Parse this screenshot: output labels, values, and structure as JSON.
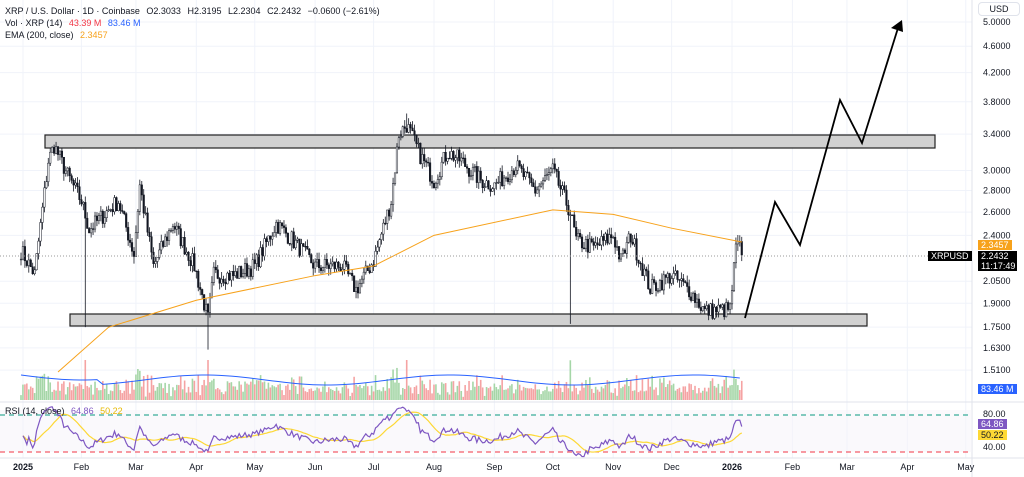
{
  "header": {
    "symbol_line": "XRP / U.S. Dollar · 1D · Coinbase",
    "open": "O2.3033",
    "high": "H2.3195",
    "low": "L2.2304",
    "close": "C2.2432",
    "change": "−0.0600 (−2.61%)",
    "vol_label": "Vol · XRP (14)",
    "vol_value": "43.39 M",
    "vol_ma": "83.46 M",
    "ema_label": "EMA (200, close)",
    "ema_value": "2.3457",
    "rsi_label": "RSI (14, close)",
    "rsi_value": "64.86",
    "rsi_ma": "50.22"
  },
  "price_axis": {
    "currency": "USD",
    "scale": "log",
    "ticks": [
      "5.0000",
      "4.6000",
      "4.2000",
      "3.8000",
      "3.4000",
      "3.0000",
      "2.8000",
      "2.6000",
      "2.4000",
      "2.0500",
      "1.9000",
      "1.7500",
      "1.6300",
      "1.5100"
    ],
    "tags": {
      "ema": "2.3457",
      "symbol": "XRPUSD",
      "last_price": "2.2432",
      "countdown": "11:17:49",
      "vol_ma": "83.46 M",
      "rsi": "64.86",
      "rsi_ma": "50.22"
    },
    "rsi_ticks": [
      "80.00",
      "40.00"
    ]
  },
  "time_axis": [
    "2025",
    "Feb",
    "Mar",
    "Apr",
    "May",
    "Jun",
    "Jul",
    "Aug",
    "Sep",
    "Oct",
    "Nov",
    "Dec",
    "2026",
    "Feb",
    "Mar",
    "Apr",
    "May"
  ],
  "colors": {
    "up": "#131722",
    "down": "#131722",
    "ema": "#f7a21b",
    "vol_ma": "#2962ff",
    "rsi": "#7e57c2",
    "rsi_ma": "#fdd835",
    "vol_up": "#a5d6a7",
    "vol_down": "#f5a3a3",
    "overbought": "#089981",
    "oversold": "#f23645"
  },
  "chart_data": {
    "type": "candlestick",
    "x_unit": "date",
    "closes_approx": [
      [
        "2025-01-01",
        2.28
      ],
      [
        "2025-01-08",
        2.1
      ],
      [
        "2025-01-15",
        3.1
      ],
      [
        "2025-01-18",
        3.27
      ],
      [
        "2025-01-25",
        2.95
      ],
      [
        "2025-02-01",
        2.7
      ],
      [
        "2025-02-05",
        2.45
      ],
      [
        "2025-02-15",
        2.62
      ],
      [
        "2025-02-20",
        2.7
      ],
      [
        "2025-02-28",
        2.25
      ],
      [
        "2025-03-03",
        2.85
      ],
      [
        "2025-03-10",
        2.16
      ],
      [
        "2025-03-20",
        2.5
      ],
      [
        "2025-03-31",
        2.16
      ],
      [
        "2025-04-07",
        1.8
      ],
      [
        "2025-04-10",
        2.1
      ],
      [
        "2025-04-20",
        2.09
      ],
      [
        "2025-05-01",
        2.16
      ],
      [
        "2025-05-12",
        2.5
      ],
      [
        "2025-05-20",
        2.37
      ],
      [
        "2025-06-01",
        2.16
      ],
      [
        "2025-06-15",
        2.16
      ],
      [
        "2025-06-22",
        1.99
      ],
      [
        "2025-07-01",
        2.2
      ],
      [
        "2025-07-10",
        2.7
      ],
      [
        "2025-07-14",
        3.4
      ],
      [
        "2025-07-18",
        3.51
      ],
      [
        "2025-07-25",
        3.16
      ],
      [
        "2025-08-01",
        2.9
      ],
      [
        "2025-08-08",
        3.2
      ],
      [
        "2025-08-15",
        3.1
      ],
      [
        "2025-08-25",
        2.9
      ],
      [
        "2025-09-01",
        2.85
      ],
      [
        "2025-09-12",
        3.05
      ],
      [
        "2025-09-22",
        2.8
      ],
      [
        "2025-10-01",
        3.0
      ],
      [
        "2025-10-10",
        2.6
      ],
      [
        "2025-10-13",
        2.36
      ],
      [
        "2025-10-22",
        2.3
      ],
      [
        "2025-11-01",
        2.4
      ],
      [
        "2025-11-05",
        2.2
      ],
      [
        "2025-11-10",
        2.4
      ],
      [
        "2025-11-20",
        2.0
      ],
      [
        "2025-12-01",
        2.09
      ],
      [
        "2025-12-10",
        1.99
      ],
      [
        "2025-12-18",
        1.85
      ],
      [
        "2025-12-31",
        1.86
      ],
      [
        "2026-01-03",
        2.29
      ],
      [
        "2026-01-05",
        2.35
      ],
      [
        "2026-01-06",
        2.2432
      ]
    ],
    "ema200_approx": [
      [
        "2025-01-20",
        1.5
      ],
      [
        "2025-02-15",
        1.75
      ],
      [
        "2025-04-01",
        1.92
      ],
      [
        "2025-06-01",
        2.09
      ],
      [
        "2025-07-01",
        2.16
      ],
      [
        "2025-08-01",
        2.4
      ],
      [
        "2025-10-01",
        2.62
      ],
      [
        "2025-11-01",
        2.58
      ],
      [
        "2025-12-01",
        2.46
      ],
      [
        "2026-01-06",
        2.3457
      ]
    ],
    "extreme_wicks": [
      [
        "2025-02-03",
        1.75
      ],
      [
        "2025-04-07",
        1.62
      ],
      [
        "2025-07-18",
        3.65
      ],
      [
        "2025-10-10",
        1.77
      ]
    ],
    "zones": [
      {
        "top": 3.4,
        "bottom": 3.25
      },
      {
        "top": 1.83,
        "bottom": 1.76
      }
    ],
    "projection": [
      [
        "2026-01-06",
        1.78
      ],
      [
        "2026-01-22",
        2.7
      ],
      [
        "2026-02-04",
        2.3
      ],
      [
        "2026-02-24",
        3.85
      ],
      [
        "2026-03-07",
        3.3
      ],
      [
        "2026-03-27",
        5.0
      ]
    ],
    "rsi_levels": {
      "overbought": 70,
      "oversold": 30
    }
  }
}
